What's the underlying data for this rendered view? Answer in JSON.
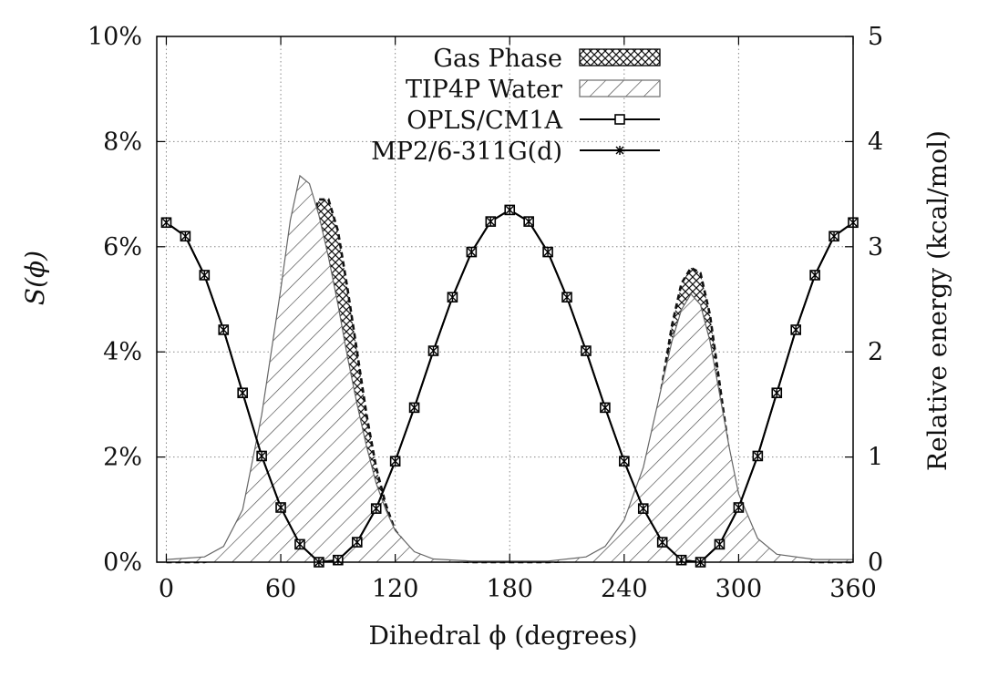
{
  "chart_data": {
    "type": "line",
    "xlabel": "Dihedral ϕ (degrees)",
    "ylabel": "S(ϕ)",
    "y2label": "Relative energy (kcal/mol)",
    "xlim": [
      -5,
      360
    ],
    "ylim": [
      0,
      10
    ],
    "y2lim": [
      0,
      5
    ],
    "x_ticks": [
      0,
      60,
      120,
      180,
      240,
      300,
      360
    ],
    "y_ticks": [
      0,
      2,
      4,
      6,
      8,
      10
    ],
    "y_tick_labels": [
      "0%",
      "2%",
      "4%",
      "6%",
      "8%",
      "10%"
    ],
    "y2_ticks": [
      0,
      1,
      2,
      3,
      4,
      5
    ],
    "grid": true,
    "legend_position": "top",
    "distributions": [
      {
        "name": "Gas Phase",
        "style": "crosshatch",
        "x": [
          0,
          20,
          30,
          40,
          50,
          60,
          65,
          70,
          75,
          80,
          85,
          90,
          95,
          100,
          105,
          110,
          115,
          120,
          130,
          140,
          160,
          180,
          200,
          220,
          230,
          240,
          250,
          255,
          260,
          265,
          270,
          275,
          280,
          285,
          290,
          295,
          300,
          310,
          320,
          340,
          360
        ],
        "y": [
          0.0,
          0.0,
          0.1,
          0.3,
          1.0,
          2.7,
          4.0,
          5.4,
          6.4,
          6.9,
          6.9,
          6.3,
          5.2,
          4.0,
          2.8,
          1.8,
          1.1,
          0.6,
          0.15,
          0.03,
          0.0,
          0.0,
          0.0,
          0.03,
          0.2,
          0.6,
          1.5,
          2.3,
          3.4,
          4.5,
          5.3,
          5.6,
          5.5,
          4.7,
          3.4,
          2.1,
          1.1,
          0.3,
          0.05,
          0.0,
          0.0
        ]
      },
      {
        "name": "TIP4P Water",
        "style": "diagonal-hatch",
        "x": [
          0,
          20,
          30,
          40,
          50,
          60,
          65,
          70,
          75,
          80,
          85,
          90,
          95,
          100,
          105,
          110,
          115,
          120,
          130,
          140,
          160,
          180,
          200,
          220,
          230,
          240,
          250,
          255,
          260,
          265,
          270,
          275,
          280,
          285,
          290,
          295,
          300,
          310,
          320,
          340,
          360
        ],
        "y": [
          0.05,
          0.1,
          0.3,
          1.0,
          2.8,
          5.2,
          6.5,
          7.35,
          7.2,
          6.6,
          5.8,
          4.9,
          3.9,
          3.0,
          2.2,
          1.5,
          1.0,
          0.6,
          0.2,
          0.06,
          0.02,
          0.02,
          0.02,
          0.1,
          0.3,
          0.8,
          1.8,
          2.6,
          3.4,
          4.2,
          4.8,
          5.1,
          4.9,
          4.2,
          3.2,
          2.2,
          1.3,
          0.45,
          0.15,
          0.05,
          0.05
        ]
      }
    ],
    "series": [
      {
        "name": "OPLS/CM1A",
        "marker": "square",
        "axis": "y2",
        "x": [
          0,
          10,
          20,
          30,
          40,
          50,
          60,
          70,
          80,
          90,
          100,
          110,
          120,
          130,
          140,
          150,
          160,
          170,
          180,
          190,
          200,
          210,
          220,
          230,
          240,
          250,
          260,
          270,
          280,
          290,
          300,
          310,
          320,
          330,
          340,
          350,
          360
        ],
        "y": [
          3.23,
          3.1,
          2.73,
          2.21,
          1.61,
          1.01,
          0.52,
          0.17,
          0.0,
          0.02,
          0.19,
          0.51,
          0.96,
          1.47,
          2.01,
          2.52,
          2.95,
          3.24,
          3.35,
          3.24,
          2.95,
          2.52,
          2.01,
          1.47,
          0.96,
          0.51,
          0.19,
          0.02,
          0.0,
          0.17,
          0.52,
          1.01,
          1.61,
          2.21,
          2.73,
          3.1,
          3.23
        ]
      },
      {
        "name": "MP2/6-311G(d)",
        "marker": "asterisk",
        "axis": "y2",
        "x": [
          0,
          10,
          20,
          30,
          40,
          50,
          60,
          70,
          80,
          90,
          100,
          110,
          120,
          130,
          140,
          150,
          160,
          170,
          180,
          190,
          200,
          210,
          220,
          230,
          240,
          250,
          260,
          270,
          280,
          290,
          300,
          310,
          320,
          330,
          340,
          350,
          360
        ],
        "y": [
          3.23,
          3.1,
          2.73,
          2.21,
          1.61,
          1.01,
          0.52,
          0.17,
          0.0,
          0.02,
          0.19,
          0.51,
          0.96,
          1.47,
          2.01,
          2.52,
          2.95,
          3.24,
          3.35,
          3.24,
          2.95,
          2.52,
          2.01,
          1.47,
          0.96,
          0.51,
          0.19,
          0.02,
          0.0,
          0.17,
          0.52,
          1.01,
          1.61,
          2.21,
          2.73,
          3.1,
          3.23
        ]
      }
    ]
  }
}
